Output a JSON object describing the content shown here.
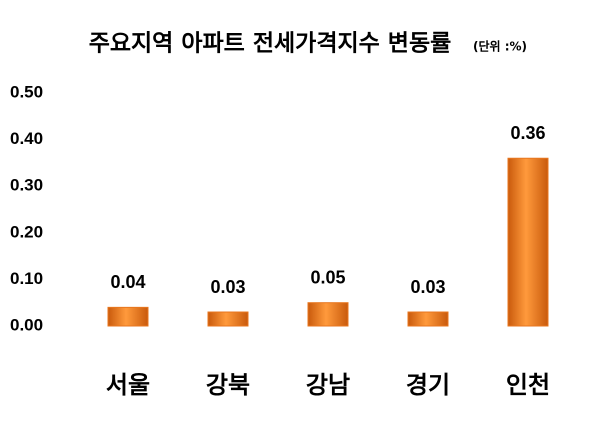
{
  "chart_data": {
    "type": "bar",
    "title": "주요지역 아파트 전세가격지수 변동률",
    "subtitle": "(단위 :%)",
    "categories": [
      "서울",
      "강북",
      "강남",
      "경기",
      "인천"
    ],
    "values": [
      0.04,
      0.03,
      0.05,
      0.03,
      0.36
    ],
    "color": "#e8761e",
    "ylim": [
      0,
      0.5
    ],
    "yticks": [
      {
        "value": 0,
        "label": "0.00"
      },
      {
        "value": 0.1,
        "label": "0.10"
      },
      {
        "value": 0.2,
        "label": "0.20"
      },
      {
        "value": 0.3,
        "label": "0.30"
      },
      {
        "value": 0.4,
        "label": "0.40"
      },
      {
        "value": 0.5,
        "label": "0.50"
      }
    ],
    "grid": false
  }
}
